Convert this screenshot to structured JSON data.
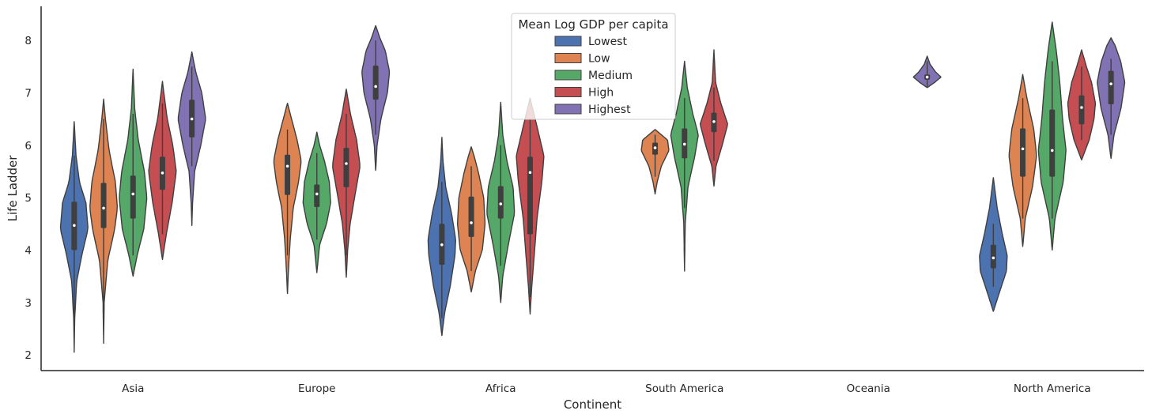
{
  "chart_data": {
    "type": "violin",
    "xlabel": "Continent",
    "ylabel": "Life Ladder",
    "ylim": [
      1.7,
      8.65
    ],
    "yticks": [
      2,
      3,
      4,
      5,
      6,
      7,
      8
    ],
    "grid": false,
    "legend": {
      "title": "Mean Log GDP per capita",
      "placement": "top-center"
    },
    "categories": [
      "Asia",
      "Europe",
      "Africa",
      "South America",
      "Oceania",
      "North America"
    ],
    "series": [
      {
        "name": "Lowest",
        "color": "#4c72b0"
      },
      {
        "name": "Low",
        "color": "#dd8452"
      },
      {
        "name": "Medium",
        "color": "#55a868"
      },
      {
        "name": "High",
        "color": "#c44e52"
      },
      {
        "name": "Highest",
        "color": "#8172b3"
      }
    ],
    "violins": [
      {
        "category": "Asia",
        "series": "Lowest",
        "min": 2.05,
        "q1": 4.0,
        "median": 4.47,
        "q3": 4.92,
        "max": 6.45,
        "wlo": 2.6,
        "whi": 5.8,
        "shape": [
          [
            2.05,
            0.0
          ],
          [
            2.7,
            0.04
          ],
          [
            3.4,
            0.18
          ],
          [
            3.9,
            0.55
          ],
          [
            4.4,
            1.0
          ],
          [
            4.9,
            0.85
          ],
          [
            5.3,
            0.38
          ],
          [
            5.8,
            0.13
          ],
          [
            6.45,
            0.0
          ]
        ]
      },
      {
        "category": "Asia",
        "series": "Low",
        "min": 2.22,
        "q1": 4.42,
        "median": 4.8,
        "q3": 5.28,
        "max": 6.88,
        "wlo": 3.0,
        "whi": 6.5,
        "shape": [
          [
            2.22,
            0.0
          ],
          [
            3.0,
            0.04
          ],
          [
            3.8,
            0.3
          ],
          [
            4.4,
            0.8
          ],
          [
            4.8,
            1.0
          ],
          [
            5.3,
            0.85
          ],
          [
            5.9,
            0.4
          ],
          [
            6.5,
            0.13
          ],
          [
            6.88,
            0.0
          ]
        ]
      },
      {
        "category": "Asia",
        "series": "Medium",
        "min": 3.5,
        "q1": 4.6,
        "median": 5.07,
        "q3": 5.42,
        "max": 7.45,
        "wlo": 3.9,
        "whi": 6.6,
        "shape": [
          [
            3.5,
            0.0
          ],
          [
            3.9,
            0.3
          ],
          [
            4.4,
            0.78
          ],
          [
            5.0,
            1.0
          ],
          [
            5.5,
            0.82
          ],
          [
            6.1,
            0.38
          ],
          [
            6.7,
            0.12
          ],
          [
            7.45,
            0.0
          ]
        ]
      },
      {
        "category": "Asia",
        "series": "High",
        "min": 3.82,
        "q1": 5.15,
        "median": 5.47,
        "q3": 5.78,
        "max": 7.22,
        "wlo": 4.3,
        "whi": 6.8,
        "shape": [
          [
            3.82,
            0.0
          ],
          [
            4.3,
            0.28
          ],
          [
            4.9,
            0.7
          ],
          [
            5.5,
            1.0
          ],
          [
            6.0,
            0.75
          ],
          [
            6.5,
            0.35
          ],
          [
            7.0,
            0.1
          ],
          [
            7.22,
            0.0
          ]
        ]
      },
      {
        "category": "Asia",
        "series": "Highest",
        "min": 4.47,
        "q1": 6.15,
        "median": 6.5,
        "q3": 6.87,
        "max": 7.78,
        "wlo": 5.6,
        "whi": 7.5,
        "shape": [
          [
            4.47,
            0.0
          ],
          [
            4.9,
            0.05
          ],
          [
            5.5,
            0.2
          ],
          [
            6.0,
            0.65
          ],
          [
            6.5,
            1.0
          ],
          [
            7.0,
            0.72
          ],
          [
            7.4,
            0.28
          ],
          [
            7.78,
            0.0
          ]
        ]
      },
      {
        "category": "Europe",
        "series": "Low",
        "min": 3.17,
        "q1": 5.05,
        "median": 5.6,
        "q3": 5.82,
        "max": 6.8,
        "wlo": 3.9,
        "whi": 6.3,
        "shape": [
          [
            3.17,
            0.0
          ],
          [
            3.6,
            0.07
          ],
          [
            4.2,
            0.2
          ],
          [
            4.8,
            0.42
          ],
          [
            5.3,
            0.8
          ],
          [
            5.7,
            1.0
          ],
          [
            6.1,
            0.7
          ],
          [
            6.5,
            0.3
          ],
          [
            6.8,
            0.0
          ]
        ]
      },
      {
        "category": "Europe",
        "series": "Medium",
        "min": 3.57,
        "q1": 4.82,
        "median": 5.07,
        "q3": 5.25,
        "max": 6.25,
        "wlo": 4.2,
        "whi": 5.85,
        "shape": [
          [
            3.57,
            0.0
          ],
          [
            4.1,
            0.2
          ],
          [
            4.5,
            0.7
          ],
          [
            4.9,
            1.0
          ],
          [
            5.3,
            0.9
          ],
          [
            5.7,
            0.55
          ],
          [
            6.0,
            0.2
          ],
          [
            6.25,
            0.0
          ]
        ]
      },
      {
        "category": "Europe",
        "series": "High",
        "min": 3.48,
        "q1": 5.2,
        "median": 5.65,
        "q3": 5.95,
        "max": 7.07,
        "wlo": 3.9,
        "whi": 6.6,
        "shape": [
          [
            3.48,
            0.0
          ],
          [
            4.0,
            0.1
          ],
          [
            4.5,
            0.28
          ],
          [
            5.0,
            0.6
          ],
          [
            5.6,
            1.0
          ],
          [
            6.1,
            0.75
          ],
          [
            6.6,
            0.3
          ],
          [
            7.07,
            0.0
          ]
        ]
      },
      {
        "category": "Europe",
        "series": "Highest",
        "min": 5.52,
        "q1": 6.87,
        "median": 7.12,
        "q3": 7.52,
        "max": 8.28,
        "wlo": 6.2,
        "whi": 8.0,
        "shape": [
          [
            5.52,
            0.0
          ],
          [
            6.0,
            0.1
          ],
          [
            6.5,
            0.38
          ],
          [
            7.0,
            0.85
          ],
          [
            7.4,
            1.0
          ],
          [
            7.8,
            0.7
          ],
          [
            8.05,
            0.3
          ],
          [
            8.28,
            0.0
          ]
        ]
      },
      {
        "category": "Africa",
        "series": "Lowest",
        "min": 2.37,
        "q1": 3.72,
        "median": 4.1,
        "q3": 4.5,
        "max": 6.15,
        "wlo": 2.7,
        "whi": 5.3,
        "shape": [
          [
            2.37,
            0.0
          ],
          [
            2.8,
            0.2
          ],
          [
            3.3,
            0.6
          ],
          [
            3.9,
            0.95
          ],
          [
            4.2,
            1.0
          ],
          [
            4.7,
            0.7
          ],
          [
            5.2,
            0.28
          ],
          [
            5.7,
            0.08
          ],
          [
            6.15,
            0.0
          ]
        ]
      },
      {
        "category": "Africa",
        "series": "Low",
        "min": 3.2,
        "q1": 4.25,
        "median": 4.52,
        "q3": 5.02,
        "max": 5.97,
        "wlo": 3.6,
        "whi": 5.6,
        "shape": [
          [
            3.2,
            0.0
          ],
          [
            3.6,
            0.3
          ],
          [
            4.0,
            0.8
          ],
          [
            4.5,
            1.0
          ],
          [
            5.0,
            0.9
          ],
          [
            5.5,
            0.5
          ],
          [
            5.8,
            0.2
          ],
          [
            5.97,
            0.0
          ]
        ]
      },
      {
        "category": "Africa",
        "series": "Medium",
        "min": 3.0,
        "q1": 4.6,
        "median": 4.88,
        "q3": 5.22,
        "max": 6.82,
        "wlo": 3.7,
        "whi": 6.0,
        "shape": [
          [
            3.0,
            0.0
          ],
          [
            3.5,
            0.15
          ],
          [
            4.1,
            0.55
          ],
          [
            4.7,
            1.0
          ],
          [
            5.2,
            0.9
          ],
          [
            5.7,
            0.45
          ],
          [
            6.2,
            0.15
          ],
          [
            6.82,
            0.0
          ]
        ]
      },
      {
        "category": "Africa",
        "series": "High",
        "min": 2.78,
        "q1": 4.3,
        "median": 5.48,
        "q3": 5.78,
        "max": 6.9,
        "wlo": 3.1,
        "whi": 6.5,
        "shape": [
          [
            2.78,
            0.0
          ],
          [
            3.3,
            0.12
          ],
          [
            3.9,
            0.3
          ],
          [
            4.6,
            0.5
          ],
          [
            5.3,
            0.85
          ],
          [
            5.8,
            1.0
          ],
          [
            6.3,
            0.55
          ],
          [
            6.9,
            0.0
          ]
        ]
      },
      {
        "category": "South America",
        "series": "Low",
        "min": 5.07,
        "q1": 5.82,
        "median": 5.95,
        "q3": 6.05,
        "max": 6.3,
        "wlo": 5.4,
        "whi": 6.2,
        "shape": [
          [
            5.07,
            0.0
          ],
          [
            5.3,
            0.15
          ],
          [
            5.6,
            0.45
          ],
          [
            5.9,
            1.0
          ],
          [
            6.1,
            0.9
          ],
          [
            6.3,
            0.0
          ]
        ]
      },
      {
        "category": "South America",
        "series": "Medium",
        "min": 3.6,
        "q1": 5.75,
        "median": 6.02,
        "q3": 6.32,
        "max": 7.6,
        "wlo": 4.8,
        "whi": 6.9,
        "shape": [
          [
            3.6,
            0.0
          ],
          [
            4.5,
            0.05
          ],
          [
            5.2,
            0.25
          ],
          [
            5.8,
            0.75
          ],
          [
            6.2,
            1.0
          ],
          [
            6.6,
            0.6
          ],
          [
            7.1,
            0.2
          ],
          [
            7.6,
            0.0
          ]
        ]
      },
      {
        "category": "South America",
        "series": "High",
        "min": 5.22,
        "q1": 6.25,
        "median": 6.45,
        "q3": 6.62,
        "max": 7.82,
        "wlo": 5.7,
        "whi": 7.1,
        "shape": [
          [
            5.22,
            0.0
          ],
          [
            5.6,
            0.15
          ],
          [
            6.0,
            0.6
          ],
          [
            6.4,
            1.0
          ],
          [
            6.8,
            0.5
          ],
          [
            7.2,
            0.12
          ],
          [
            7.82,
            0.0
          ]
        ]
      },
      {
        "category": "Oceania",
        "series": "Highest",
        "min": 7.1,
        "q1": 7.25,
        "median": 7.3,
        "q3": 7.35,
        "max": 7.7,
        "wlo": 7.12,
        "whi": 7.6,
        "shape": [
          [
            7.1,
            0.0
          ],
          [
            7.2,
            0.55
          ],
          [
            7.3,
            1.0
          ],
          [
            7.4,
            0.6
          ],
          [
            7.55,
            0.2
          ],
          [
            7.7,
            0.0
          ]
        ]
      },
      {
        "category": "North America",
        "series": "Lowest",
        "min": 2.83,
        "q1": 3.65,
        "median": 3.85,
        "q3": 4.1,
        "max": 5.38,
        "wlo": 3.3,
        "whi": 4.5,
        "shape": [
          [
            2.83,
            0.0
          ],
          [
            3.2,
            0.45
          ],
          [
            3.6,
            0.95
          ],
          [
            3.9,
            1.0
          ],
          [
            4.3,
            0.65
          ],
          [
            4.8,
            0.28
          ],
          [
            5.38,
            0.0
          ]
        ]
      },
      {
        "category": "North America",
        "series": "Low",
        "min": 4.07,
        "q1": 5.4,
        "median": 5.93,
        "q3": 6.32,
        "max": 7.35,
        "wlo": 4.6,
        "whi": 6.9,
        "shape": [
          [
            4.07,
            0.0
          ],
          [
            4.6,
            0.18
          ],
          [
            5.2,
            0.7
          ],
          [
            5.8,
            1.0
          ],
          [
            6.3,
            0.8
          ],
          [
            6.9,
            0.3
          ],
          [
            7.35,
            0.0
          ]
        ]
      },
      {
        "category": "North America",
        "series": "Medium",
        "min": 4.0,
        "q1": 5.4,
        "median": 5.9,
        "q3": 6.68,
        "max": 8.35,
        "wlo": 4.6,
        "whi": 7.6,
        "shape": [
          [
            4.0,
            0.0
          ],
          [
            4.6,
            0.2
          ],
          [
            5.3,
            0.8
          ],
          [
            5.9,
            1.0
          ],
          [
            6.5,
            0.75
          ],
          [
            7.2,
            0.55
          ],
          [
            7.8,
            0.3
          ],
          [
            8.35,
            0.0
          ]
        ]
      },
      {
        "category": "North America",
        "series": "High",
        "min": 5.72,
        "q1": 6.4,
        "median": 6.72,
        "q3": 6.95,
        "max": 7.82,
        "wlo": 6.1,
        "whi": 7.5,
        "shape": [
          [
            5.72,
            0.0
          ],
          [
            6.1,
            0.55
          ],
          [
            6.5,
            0.9
          ],
          [
            6.8,
            1.0
          ],
          [
            7.2,
            0.72
          ],
          [
            7.5,
            0.35
          ],
          [
            7.82,
            0.0
          ]
        ]
      },
      {
        "category": "North America",
        "series": "Highest",
        "min": 5.75,
        "q1": 6.78,
        "median": 7.17,
        "q3": 7.42,
        "max": 8.05,
        "wlo": 6.2,
        "whi": 7.65,
        "shape": [
          [
            5.75,
            0.0
          ],
          [
            6.2,
            0.22
          ],
          [
            6.7,
            0.72
          ],
          [
            7.2,
            1.0
          ],
          [
            7.6,
            0.7
          ],
          [
            7.9,
            0.3
          ],
          [
            8.05,
            0.0
          ]
        ]
      }
    ]
  }
}
